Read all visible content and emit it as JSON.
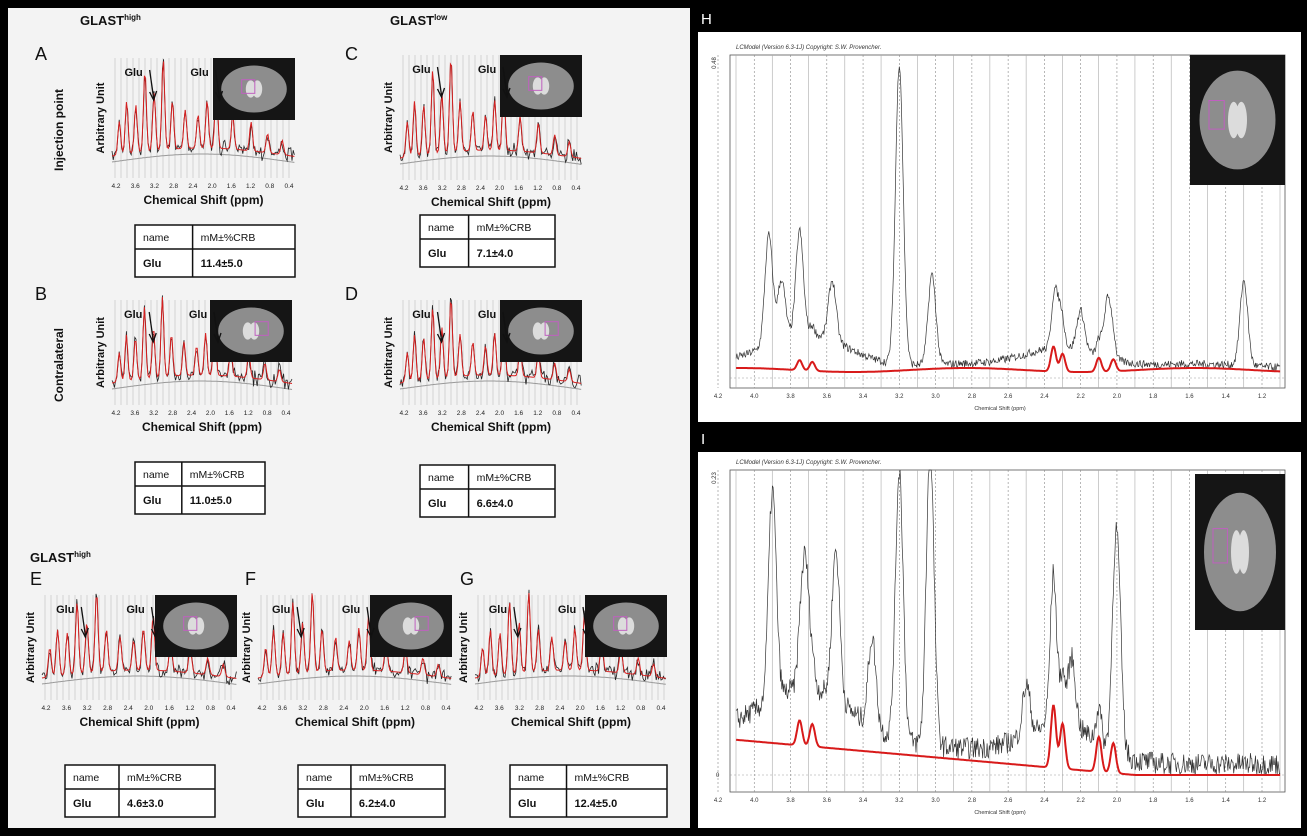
{
  "groups": [
    {
      "base": "GLAST",
      "sup": "high"
    },
    {
      "base": "GLAST",
      "sup": "low"
    },
    {
      "base": "GLAST",
      "sup": "high"
    }
  ],
  "row_labels": [
    "Injection point",
    "Contralateral"
  ],
  "axis": {
    "ylabel": "Arbitrary Unit",
    "xlabel": "Chemical Shift (ppm)",
    "xticks": [
      "4.2",
      "3.6",
      "3.2",
      "2.8",
      "2.4",
      "2.0",
      "1.6",
      "1.2",
      "0.8",
      "0.4"
    ]
  },
  "table_header": [
    "name",
    "mM±%CRB"
  ],
  "panels": [
    {
      "letter": "A",
      "arrows": [
        "Glu",
        "Glu"
      ],
      "row": [
        "Glu",
        "11.4±5.0"
      ]
    },
    {
      "letter": "B",
      "arrows": [
        "Glu",
        "Glu"
      ],
      "row": [
        "Glu",
        "11.0±5.0"
      ]
    },
    {
      "letter": "C",
      "arrows": [
        "Glu",
        "Glu"
      ],
      "row": [
        "Glu",
        "7.1±4.0"
      ]
    },
    {
      "letter": "D",
      "arrows": [
        "Glu",
        "Glu"
      ],
      "row": [
        "Glu",
        "6.6±4.0"
      ]
    },
    {
      "letter": "E",
      "arrows": [
        "Glu",
        "Glu"
      ],
      "row": [
        "Glu",
        "4.6±3.0"
      ]
    },
    {
      "letter": "F",
      "arrows": [
        "Glu",
        "Glu"
      ],
      "row": [
        "Glu",
        "6.2±4.0"
      ]
    },
    {
      "letter": "G",
      "arrows": [
        "Glu",
        "Glu"
      ],
      "row": [
        "Glu",
        "12.4±5.0"
      ]
    }
  ],
  "lcmodel": {
    "header": "LCModel (Version 6.3-1J) Copyright: S.W. Provencher.",
    "xlabel": "Chemical Shift (ppm)",
    "xticks": [
      "4.2",
      "4.0",
      "3.8",
      "3.6",
      "3.4",
      "3.2",
      "3.0",
      "2.8",
      "2.6",
      "2.4",
      "2.2",
      "2.0",
      "1.8",
      "1.6",
      "1.4",
      "1.2"
    ],
    "panels": [
      {
        "letter": "H",
        "ymax": "0.48"
      },
      {
        "letter": "I",
        "ymax": "0.23",
        "yzero": "0"
      }
    ]
  }
}
